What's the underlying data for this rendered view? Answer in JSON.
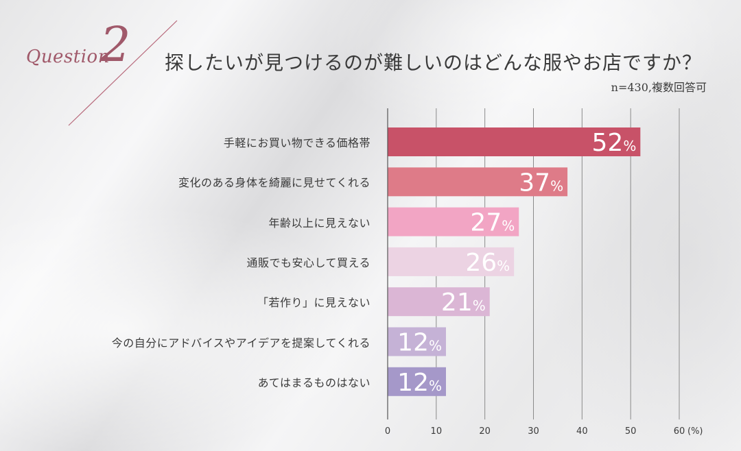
{
  "header": {
    "question_word": "Question",
    "question_number": "2",
    "title": "探したいが見つけるのが難しいのはどんな服やお店ですか？",
    "subtitle": "n=430,複数回答可"
  },
  "chart_data": {
    "type": "bar",
    "orientation": "horizontal",
    "title": "探したいが見つけるのが難しいのはどんな服やお店ですか？",
    "xlabel": "(%)",
    "xlim": [
      0,
      60
    ],
    "xticks": [
      0,
      10,
      20,
      30,
      40,
      50,
      60
    ],
    "unit_suffix": "%",
    "categories": [
      "手軽にお買い物できる価格帯",
      "変化のある身体を綺麗に見せてくれる",
      "年齢以上に見えない",
      "通販でも安心して買える",
      "「若作り」に見えない",
      "今の自分にアドバイスやアイデアを提案してくれる",
      "あてはまるものはない"
    ],
    "values": [
      52,
      37,
      27,
      26,
      21,
      12,
      12
    ],
    "colors": [
      "#c85268",
      "#de7b88",
      "#f2a5c4",
      "#ecd3e3",
      "#dbb6d5",
      "#c5b2d6",
      "#a598c9"
    ]
  }
}
